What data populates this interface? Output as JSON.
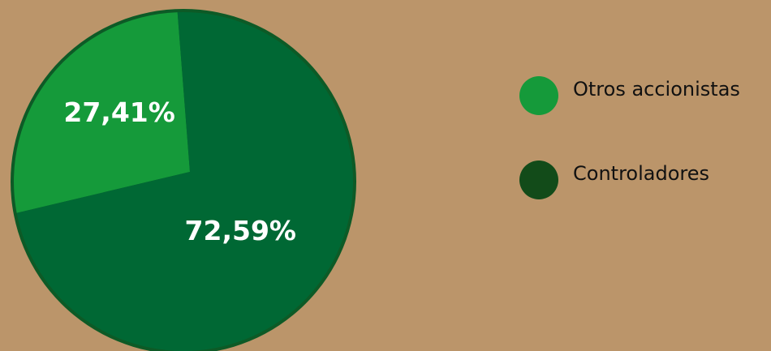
{
  "chart_data": {
    "type": "pie",
    "categories": [
      "Otros accionistas",
      "Controladores"
    ],
    "values": [
      27.41,
      72.59
    ],
    "value_labels": [
      "27,41%",
      "72,59%"
    ],
    "colors": [
      "#159a3a",
      "#006834"
    ],
    "legend_colors": [
      "#159a3a",
      "#124b19"
    ],
    "outline_color": "#0d5a26",
    "title": "",
    "legend_position": "right"
  },
  "colors": {
    "background": "#bb956a"
  },
  "legend": {
    "items": [
      {
        "label": "Otros accionistas",
        "color": "#159a3a"
      },
      {
        "label": "Controladores",
        "color": "#124b19"
      }
    ]
  }
}
